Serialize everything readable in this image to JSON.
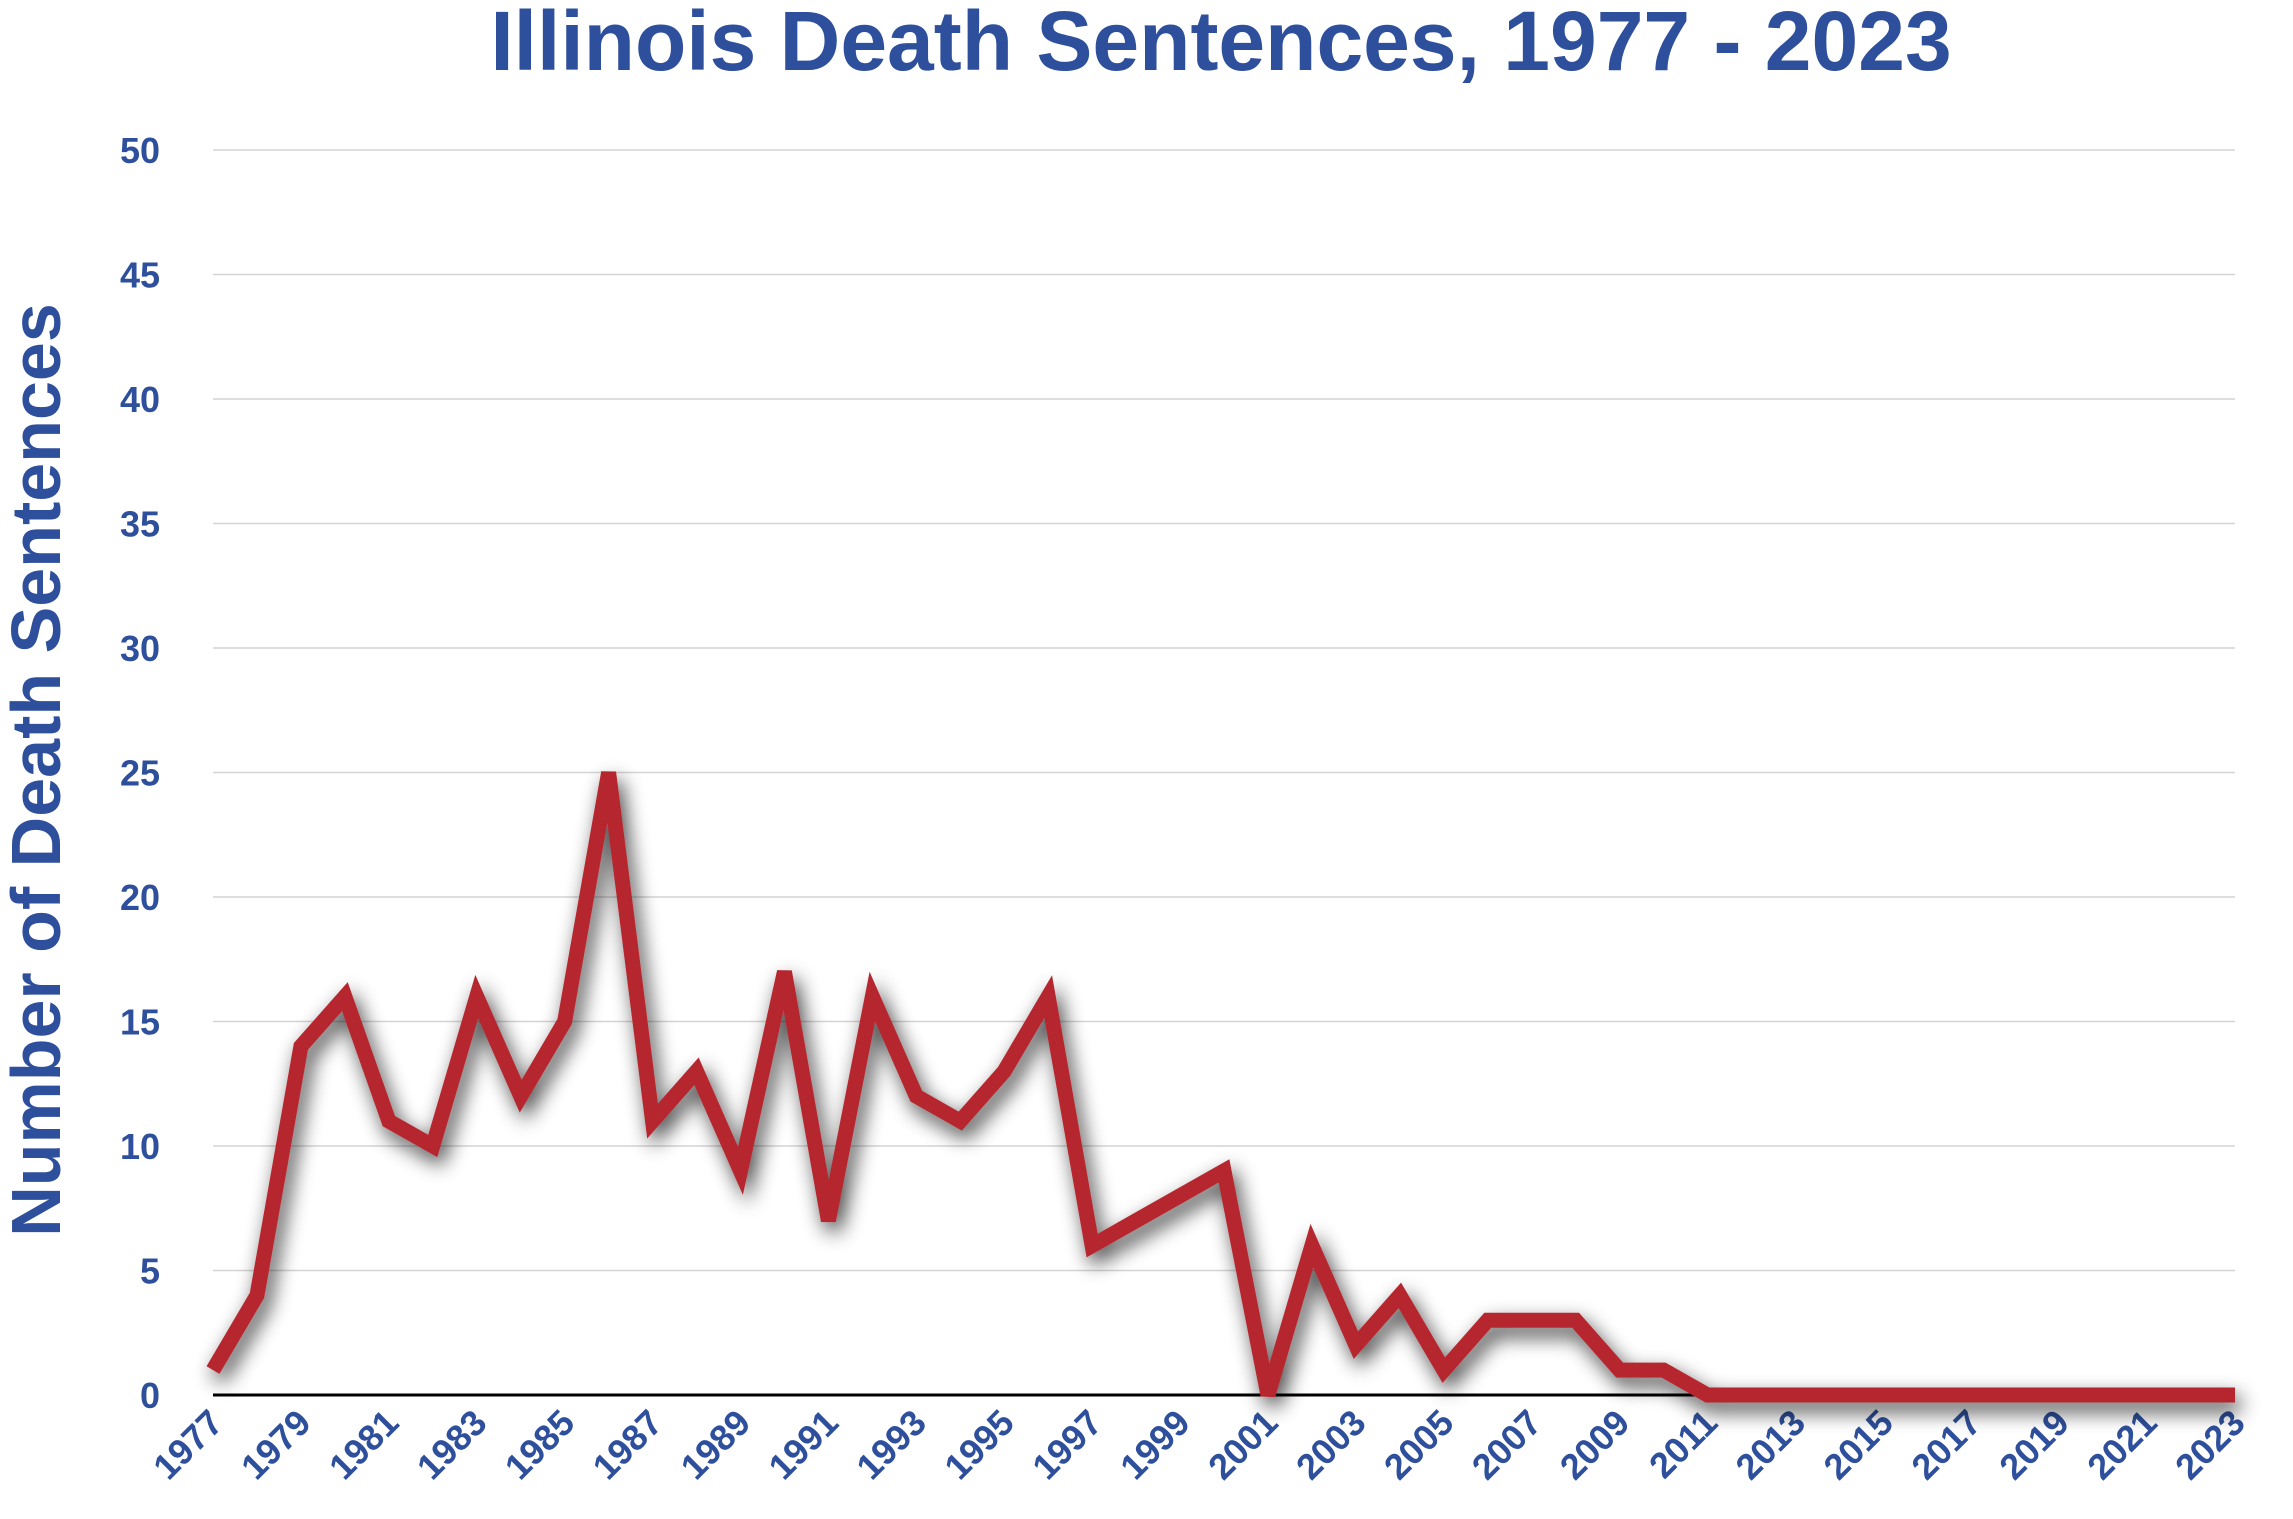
{
  "colors": {
    "text": "#2E4F9C",
    "line": "#B5252E",
    "grid": "#d4d4d4",
    "axis": "#000000",
    "background": "#ffffff"
  },
  "chart_data": {
    "type": "line",
    "title": "Illinois Death Sentences, 1977 - 2023",
    "xlabel": "",
    "ylabel": "Number of Death Sentences",
    "ylim": [
      0,
      50
    ],
    "yticks": [
      0,
      5,
      10,
      15,
      20,
      25,
      30,
      35,
      40,
      45,
      50
    ],
    "xticks": [
      "1977",
      "1979",
      "1981",
      "1983",
      "1985",
      "1987",
      "1989",
      "1991",
      "1993",
      "1995",
      "1997",
      "1999",
      "2001",
      "2003",
      "2005",
      "2007",
      "2009",
      "2011",
      "2013",
      "2015",
      "2017",
      "2019",
      "2021",
      "2023"
    ],
    "grid": true,
    "legend": "none",
    "series": [
      {
        "color": "#B5252E",
        "x": [
          1977,
          1978,
          1979,
          1980,
          1981,
          1982,
          1983,
          1984,
          1985,
          1986,
          1987,
          1988,
          1989,
          1990,
          1991,
          1992,
          1993,
          1994,
          1995,
          1996,
          1997,
          1998,
          1999,
          2000,
          2001,
          2002,
          2003,
          2004,
          2005,
          2006,
          2007,
          2008,
          2009,
          2010,
          2011,
          2012,
          2013,
          2014,
          2015,
          2016,
          2017,
          2018,
          2019,
          2020,
          2021,
          2022,
          2023
        ],
        "values": [
          1,
          4,
          14,
          16,
          11,
          10,
          16,
          12,
          15,
          25,
          11,
          13,
          9,
          17,
          7,
          16,
          12,
          11,
          13,
          16,
          6,
          7,
          8,
          9,
          0,
          6,
          2,
          4,
          1,
          3,
          3,
          3,
          1,
          1,
          0,
          0,
          0,
          0,
          0,
          0,
          0,
          0,
          0,
          0,
          0,
          0,
          0
        ]
      }
    ]
  }
}
